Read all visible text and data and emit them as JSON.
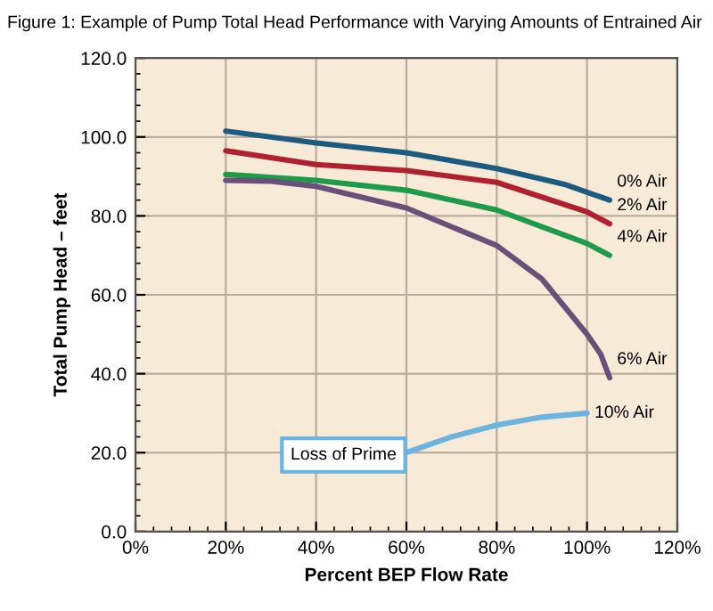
{
  "chart_data": {
    "type": "line",
    "title": "Figure 1: Example of Pump Total Head Performance with Varying Amounts of Entrained Air",
    "xlabel": "Percent BEP Flow Rate",
    "ylabel": "Total Pump Head – feet",
    "xlim": [
      0,
      120
    ],
    "ylim": [
      0,
      120
    ],
    "xticks": [
      {
        "value": 0,
        "label": "0%"
      },
      {
        "value": 20,
        "label": "20%"
      },
      {
        "value": 40,
        "label": "40%"
      },
      {
        "value": 60,
        "label": "60%"
      },
      {
        "value": 80,
        "label": "80%"
      },
      {
        "value": 100,
        "label": "100%"
      },
      {
        "value": 120,
        "label": "120%"
      }
    ],
    "yticks": [
      {
        "value": 0,
        "label": "0.0"
      },
      {
        "value": 20,
        "label": "20.0"
      },
      {
        "value": 40,
        "label": "40.0"
      },
      {
        "value": 60,
        "label": "60.0"
      },
      {
        "value": 80,
        "label": "80.0"
      },
      {
        "value": 100,
        "label": "100.0"
      },
      {
        "value": 120,
        "label": "120.0"
      }
    ],
    "grid": true,
    "legend": false,
    "marker": "none",
    "line_style": "solid",
    "series": [
      {
        "name": "0% Air",
        "color": "#1c5a80",
        "x": [
          20,
          40,
          60,
          80,
          95,
          100,
          105
        ],
        "values": [
          101.5,
          98.5,
          96,
          92,
          88,
          86,
          84
        ]
      },
      {
        "name": "2% Air",
        "color": "#b0202e",
        "x": [
          20,
          40,
          60,
          80,
          100,
          105
        ],
        "values": [
          96.5,
          93,
          91.5,
          88.5,
          81,
          78
        ]
      },
      {
        "name": "4% Air",
        "color": "#1e9a4c",
        "x": [
          20,
          40,
          60,
          80,
          100,
          105
        ],
        "values": [
          90.5,
          89,
          86.5,
          81.5,
          73,
          70
        ]
      },
      {
        "name": "6% Air",
        "color": "#6a4f78",
        "x": [
          20,
          30,
          40,
          60,
          80,
          90,
          100,
          103,
          105
        ],
        "values": [
          89,
          88.8,
          87.5,
          82,
          72.5,
          64,
          50,
          45,
          39
        ]
      },
      {
        "name": "10% Air",
        "color": "#6cb4e0",
        "x": [
          60,
          70,
          80,
          90,
          100
        ],
        "values": [
          20,
          24,
          27,
          29,
          30
        ]
      }
    ],
    "annotations": [
      {
        "text": "Loss of Prime",
        "x": 60,
        "y": 20
      }
    ]
  }
}
